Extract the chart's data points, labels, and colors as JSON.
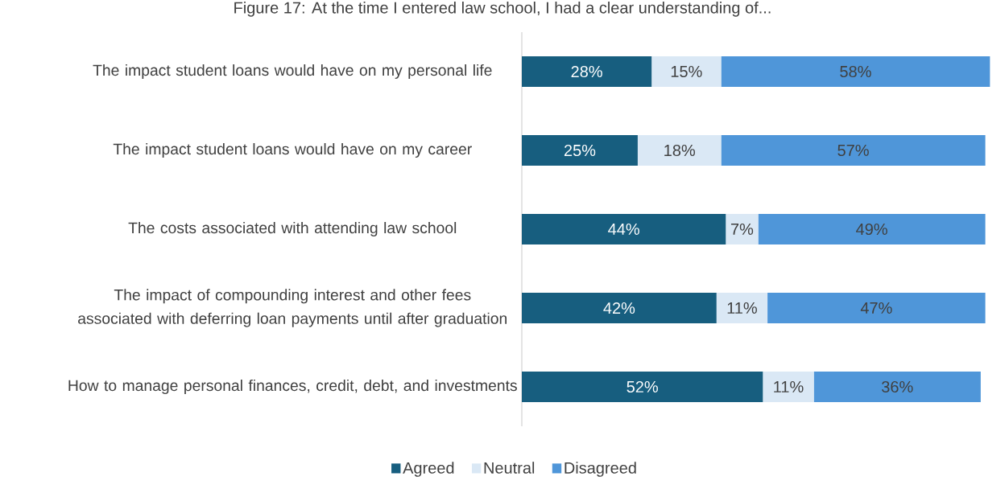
{
  "chart_data": {
    "type": "bar",
    "orientation": "horizontal",
    "stacked": true,
    "title": "Figure 17: At the time I entered law school, I had a clear understanding of...",
    "categories": [
      "The impact student loans would have on my personal life",
      "The impact student loans would have on my career",
      "The costs associated with attending law school",
      "The impact of compounding interest and other fees associated with deferring loan payments until after graduation",
      "How to manage personal finances, credit, debt, and investments"
    ],
    "series": [
      {
        "name": "Agreed",
        "color": "#175e7f",
        "values": [
          28,
          25,
          44,
          42,
          52
        ],
        "value_labels": [
          "28%",
          "25%",
          "44%",
          "42%",
          "52%"
        ]
      },
      {
        "name": "Neutral",
        "color": "#dae8f5",
        "values": [
          15,
          18,
          7,
          11,
          11
        ],
        "value_labels": [
          "15%",
          "18%",
          "7%",
          "11%",
          "11%"
        ]
      },
      {
        "name": "Disagreed",
        "color": "#4f96d9",
        "values": [
          58,
          57,
          49,
          47,
          36
        ],
        "value_labels": [
          "58%",
          "57%",
          "49%",
          "47%",
          "36%"
        ]
      }
    ],
    "legend": "bottom"
  }
}
